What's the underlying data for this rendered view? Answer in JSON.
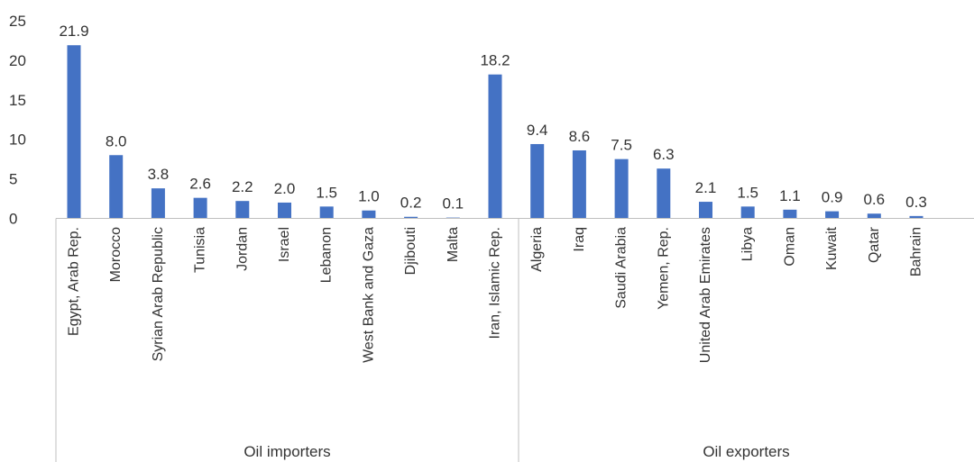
{
  "chart_data": {
    "type": "bar",
    "ylim": [
      0,
      25
    ],
    "yticks": [
      0,
      5,
      10,
      15,
      20,
      25
    ],
    "grid": false,
    "legend": "none",
    "bar_color": "#4472C4",
    "groups": [
      {
        "name": "Oil importers",
        "categories": [
          "Egypt, Arab Rep.",
          "Morocco",
          "Syrian Arab Republic",
          "Tunisia",
          "Jordan",
          "Israel",
          "Lebanon",
          "West Bank and Gaza",
          "Djibouti",
          "Malta"
        ],
        "values": [
          21.9,
          8.0,
          3.8,
          2.6,
          2.2,
          2.0,
          1.5,
          1.0,
          0.2,
          0.1
        ],
        "value_labels": [
          "21.9",
          "8.0",
          "3.8",
          "2.6",
          "2.2",
          "2.0",
          "1.5",
          "1.0",
          "0.2",
          "0.1"
        ]
      },
      {
        "name": "Oil exporters",
        "categories": [
          "Iran, Islamic Rep.",
          "Algeria",
          "Iraq",
          "Saudi Arabia",
          "Yemen, Rep.",
          "United Arab Emirates",
          "Libya",
          "Oman",
          "Kuwait",
          "Qatar",
          "Bahrain"
        ],
        "values": [
          18.2,
          9.4,
          8.6,
          7.5,
          6.3,
          2.1,
          1.5,
          1.1,
          0.9,
          0.6,
          0.3
        ],
        "value_labels": [
          "18.2",
          "9.4",
          "8.6",
          "7.5",
          "6.3",
          "2.1",
          "1.5",
          "1.1",
          "0.9",
          "0.6",
          "0.3"
        ]
      }
    ]
  }
}
